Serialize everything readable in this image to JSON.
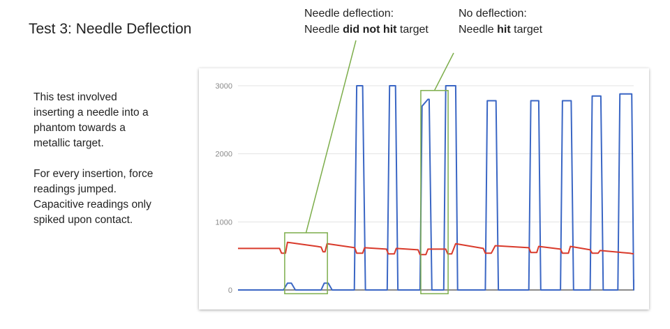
{
  "slide": {
    "title": "Test 3: Needle Deflection",
    "paragraphs": [
      "This test involved inserting a needle into a phantom towards a metallic target.",
      "For every insertion, force readings jumped. Capacitive readings only spiked upon contact."
    ]
  },
  "callouts": {
    "left": {
      "line1": "Needle deflection:",
      "line2_pre": "Needle ",
      "line2_bold": "did not hit",
      "line2_post": " target"
    },
    "right": {
      "line1": "No deflection:",
      "line2_pre": "Needle ",
      "line2_bold": "hit",
      "line2_post": " target"
    }
  },
  "colors": {
    "capacitive": "#3a66c4",
    "force": "#d93a2b",
    "highlight": "#7cad4a",
    "grid": "#e3e3e3"
  },
  "chart_data": {
    "type": "line",
    "title": "",
    "xlabel": "",
    "ylabel": "",
    "ylim": [
      0,
      3000
    ],
    "xlim": [
      0,
      100
    ],
    "yticks": [
      "0",
      "1000",
      "2000",
      "3000"
    ],
    "grid": true,
    "series": [
      {
        "color": "#3a66c4",
        "x": [
          0,
          11.5,
          12.5,
          13.5,
          14.5,
          21,
          21.8,
          22.8,
          23.8,
          29.4,
          30,
          31.5,
          32.2,
          37.7,
          38.3,
          39.8,
          40.4,
          46,
          46.5,
          48,
          48.3,
          49,
          52,
          52.5,
          55,
          55.5,
          62.5,
          63,
          65.2,
          65.8,
          73.5,
          74,
          76,
          76.5,
          81.5,
          82,
          84.2,
          84.8,
          89,
          89.5,
          91.7,
          92.3,
          96,
          96.5,
          99.5,
          100,
          100,
          100,
          100,
          100
        ],
        "y": [
          0,
          0,
          100,
          100,
          0,
          0,
          100,
          100,
          0,
          0,
          3000,
          3000,
          0,
          0,
          3000,
          3000,
          0,
          0,
          2700,
          2800,
          2800,
          0,
          0,
          3000,
          3000,
          0,
          0,
          2780,
          2780,
          0,
          0,
          2780,
          2780,
          0,
          0,
          2780,
          2780,
          0,
          0,
          2850,
          2850,
          0,
          0,
          2880,
          2880,
          0,
          0,
          0,
          150,
          150
        ]
      },
      {
        "color": "#d93a2b",
        "x": [
          0,
          5,
          10.5,
          11,
          12,
          12.5,
          20,
          21,
          21.5,
          22,
          22.5,
          29.5,
          30,
          31.5,
          32,
          37.5,
          38,
          39.5,
          40,
          45.5,
          46,
          47.5,
          48,
          52.5,
          53,
          54,
          55,
          62,
          62.5,
          64,
          65,
          73.5,
          74,
          75.5,
          76,
          81.5,
          82,
          83.5,
          84,
          89,
          89.5,
          91,
          91.5,
          99,
          100
        ],
        "y": [
          610,
          610,
          610,
          540,
          540,
          700,
          640,
          630,
          560,
          560,
          680,
          620,
          540,
          540,
          620,
          600,
          530,
          530,
          610,
          590,
          520,
          520,
          600,
          600,
          530,
          530,
          680,
          610,
          540,
          540,
          650,
          620,
          550,
          550,
          640,
          600,
          540,
          540,
          640,
          590,
          540,
          540,
          580,
          540,
          530
        ]
      }
    ],
    "highlights": [
      {
        "x0": 11.8,
        "x1": 22.6,
        "y0": -55,
        "y1": 840
      },
      {
        "x0": 46.2,
        "x1": 53.1,
        "y0": -55,
        "y1": 2930
      }
    ]
  }
}
